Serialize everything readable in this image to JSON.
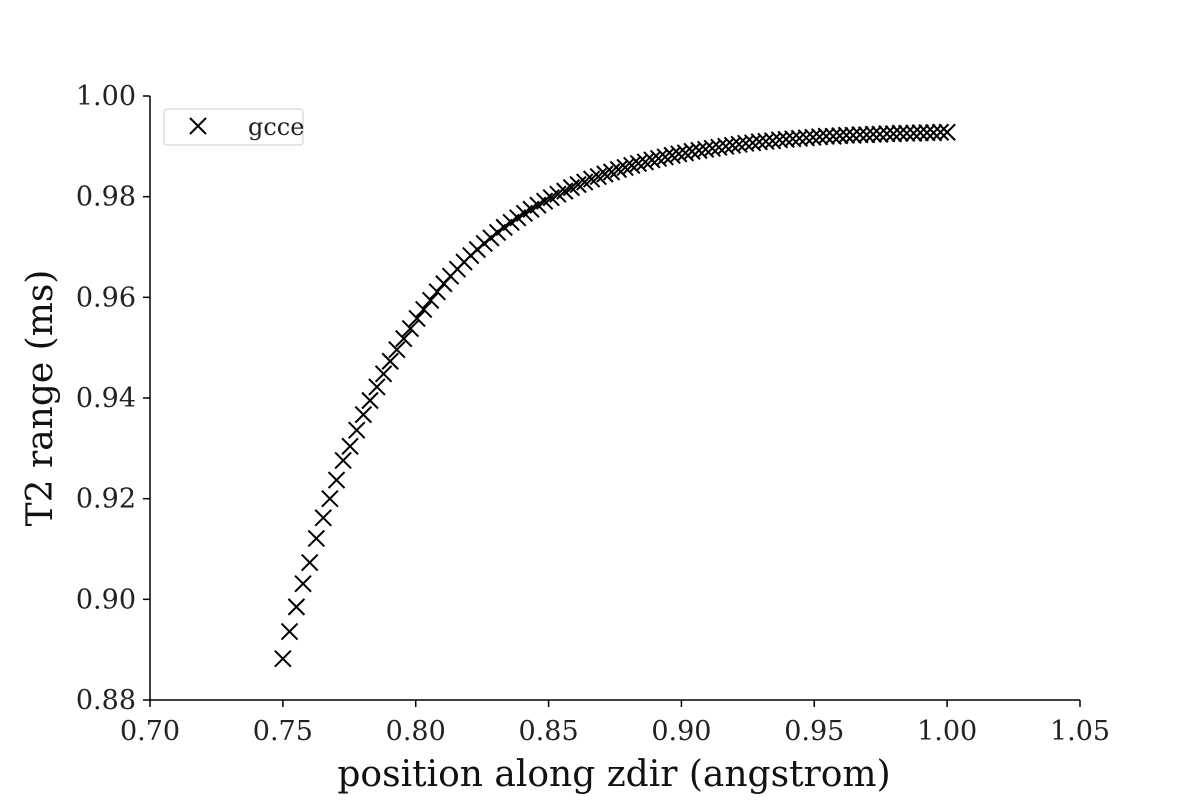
{
  "chart_data": {
    "type": "scatter",
    "xlabel": "position along zdir (angstrom)",
    "ylabel": "T2 range (ms)",
    "xlim": [
      0.7,
      1.05
    ],
    "ylim": [
      0.88,
      1.0
    ],
    "x_ticks": [
      "0.70",
      "0.75",
      "0.80",
      "0.85",
      "0.90",
      "0.95",
      "1.00",
      "1.05"
    ],
    "y_ticks": [
      "0.88",
      "0.90",
      "0.92",
      "0.94",
      "0.96",
      "0.98",
      "1.00"
    ],
    "grid": false,
    "legend_position": "upper-left",
    "marker": "x",
    "color": "#000000",
    "series": [
      {
        "name": "gcce",
        "x": [
          0.75,
          0.7525,
          0.7551,
          0.7576,
          0.7601,
          0.7626,
          0.7652,
          0.7677,
          0.7702,
          0.7727,
          0.7753,
          0.7778,
          0.7803,
          0.7828,
          0.7854,
          0.7879,
          0.7904,
          0.7929,
          0.7955,
          0.798,
          0.8005,
          0.803,
          0.8056,
          0.8081,
          0.8106,
          0.8131,
          0.8157,
          0.8182,
          0.8207,
          0.8232,
          0.8258,
          0.8283,
          0.8308,
          0.8333,
          0.8359,
          0.8384,
          0.8409,
          0.8434,
          0.846,
          0.8485,
          0.851,
          0.8535,
          0.8561,
          0.8586,
          0.8611,
          0.8636,
          0.8662,
          0.8687,
          0.8712,
          0.8737,
          0.8763,
          0.8788,
          0.8813,
          0.8838,
          0.8864,
          0.8889,
          0.8914,
          0.8939,
          0.8965,
          0.899,
          0.9015,
          0.904,
          0.9066,
          0.9091,
          0.9116,
          0.9141,
          0.9167,
          0.9192,
          0.9217,
          0.9242,
          0.9268,
          0.9293,
          0.9318,
          0.9343,
          0.9369,
          0.9394,
          0.9419,
          0.9444,
          0.947,
          0.9495,
          0.952,
          0.9545,
          0.9571,
          0.9596,
          0.9621,
          0.9646,
          0.9672,
          0.9697,
          0.9722,
          0.9747,
          0.9773,
          0.9798,
          0.9823,
          0.9848,
          0.9874,
          0.9899,
          0.9924,
          0.9949,
          0.9975,
          1.0
        ],
        "y": [
          0.8882,
          0.8936,
          0.8985,
          0.9031,
          0.9073,
          0.9121,
          0.9162,
          0.92,
          0.9237,
          0.9276,
          0.9304,
          0.9336,
          0.9367,
          0.9395,
          0.9422,
          0.9448,
          0.9473,
          0.9496,
          0.9518,
          0.9538,
          0.9558,
          0.9576,
          0.9594,
          0.9611,
          0.9627,
          0.9642,
          0.9656,
          0.967,
          0.9683,
          0.9695,
          0.9707,
          0.9718,
          0.9729,
          0.9739,
          0.9749,
          0.9758,
          0.9767,
          0.9775,
          0.9783,
          0.9791,
          0.9798,
          0.9805,
          0.9811,
          0.9818,
          0.9824,
          0.9829,
          0.9835,
          0.984,
          0.9845,
          0.9849,
          0.9854,
          0.9858,
          0.9862,
          0.9866,
          0.9869,
          0.9873,
          0.9876,
          0.9879,
          0.9882,
          0.9885,
          0.9887,
          0.989,
          0.9892,
          0.9894,
          0.9896,
          0.9898,
          0.99,
          0.9902,
          0.9904,
          0.9906,
          0.9907,
          0.9909,
          0.991,
          0.9911,
          0.9913,
          0.9914,
          0.9915,
          0.9916,
          0.9917,
          0.9918,
          0.9919,
          0.992,
          0.992,
          0.9921,
          0.9922,
          0.9922,
          0.9923,
          0.9923,
          0.9924,
          0.9924,
          0.9925,
          0.9925,
          0.9926,
          0.9926,
          0.9926,
          0.9927,
          0.9927,
          0.9927,
          0.9928,
          0.9928
        ]
      }
    ]
  }
}
